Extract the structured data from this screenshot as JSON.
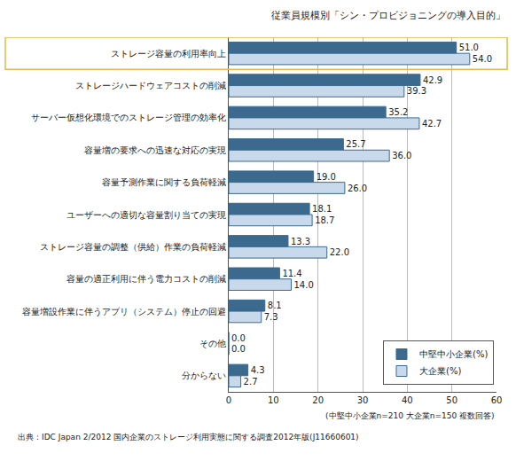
{
  "chart_data": {
    "type": "bar",
    "orientation": "horizontal",
    "title": "従業員規模別「シン・プロビジョニングの導入目的」",
    "categories": [
      "ストレージ容量の利用率向上",
      "ストレージハードウェアコストの削減",
      "サーバー仮想化環境でのストレージ管理の効率化",
      "容量増の要求への迅速な対応の実現",
      "容量予測作業に関する負荷軽減",
      "ユーザーへの適切な容量割り当ての実現",
      "ストレージ容量の調整（供給）作業の負荷軽減",
      "容量の適正利用に伴う電力コストの削減",
      "容量増設作業に伴うアプリ（システム）停止の回避",
      "その他",
      "分からない"
    ],
    "series": [
      {
        "name": "中堅中小企業(%)",
        "color": "#3b6a8e",
        "values": [
          51.0,
          42.9,
          35.2,
          25.7,
          19.0,
          18.1,
          13.3,
          11.4,
          8.1,
          0.0,
          4.3
        ],
        "value_labels": [
          "51.0",
          "42.9",
          "35.2",
          "25.7",
          "19.0",
          "18.1",
          "13.3",
          "11.4",
          "8.1",
          "0.0",
          "4.3"
        ]
      },
      {
        "name": "大企業(%)",
        "color": "#c9d9ec",
        "values": [
          54.0,
          39.3,
          42.7,
          36.0,
          26.0,
          18.7,
          22.0,
          14.0,
          7.3,
          0.0,
          2.7
        ],
        "value_labels": [
          "54.0",
          "39.3",
          "42.7",
          "36.0",
          "26.0",
          "18.7",
          "22.0",
          "14.0",
          "7.3",
          "0.0",
          "2.7"
        ]
      }
    ],
    "xlim": [
      0,
      60
    ],
    "xticks": [
      0,
      10,
      20,
      30,
      40,
      50,
      60
    ],
    "grid": true,
    "legend": "lower right",
    "data_labels": true,
    "annotations": [
      "(中堅中小企業n=210 大企業n=150 複数回答)",
      "出典：IDC Japan 2/2012 国内企業のストレージ利用実態に関する調査2012年版(J11660601)"
    ]
  }
}
